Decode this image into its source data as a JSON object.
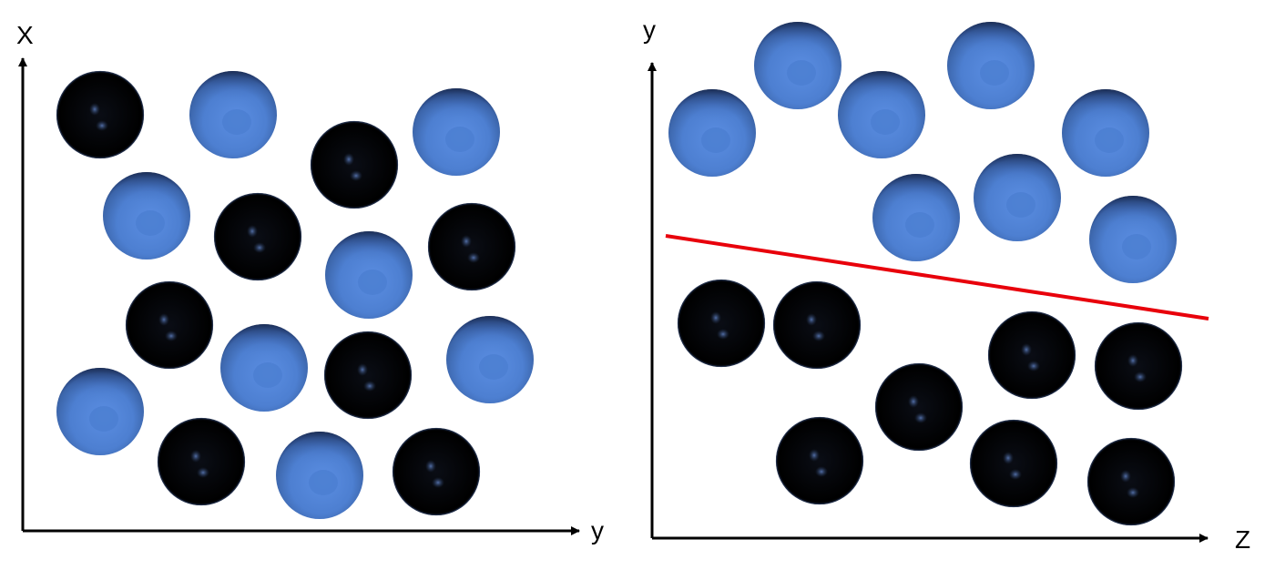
{
  "left_panel": {
    "vertical_axis_label": "X",
    "horizontal_axis_label": "y",
    "spheres": [
      {
        "type": "black"
      },
      {
        "type": "blue"
      },
      {
        "type": "black"
      },
      {
        "type": "blue"
      },
      {
        "type": "blue"
      },
      {
        "type": "black"
      },
      {
        "type": "black"
      },
      {
        "type": "blue"
      },
      {
        "type": "black"
      },
      {
        "type": "blue"
      },
      {
        "type": "black"
      },
      {
        "type": "blue"
      },
      {
        "type": "blue"
      },
      {
        "type": "black"
      },
      {
        "type": "blue"
      },
      {
        "type": "black"
      }
    ]
  },
  "right_panel": {
    "vertical_axis_label": "y",
    "horizontal_axis_label": "Z",
    "spheres": [
      {
        "type": "blue"
      },
      {
        "type": "blue"
      },
      {
        "type": "blue"
      },
      {
        "type": "blue"
      },
      {
        "type": "blue"
      },
      {
        "type": "blue"
      },
      {
        "type": "blue"
      },
      {
        "type": "blue"
      },
      {
        "type": "black"
      },
      {
        "type": "black"
      },
      {
        "type": "black"
      },
      {
        "type": "black"
      },
      {
        "type": "black"
      },
      {
        "type": "black"
      },
      {
        "type": "black"
      },
      {
        "type": "black"
      }
    ],
    "divider_line": {
      "color": "#e8000b"
    }
  },
  "colors": {
    "blue_sphere": "#4d7fd1",
    "black_sphere": "#000000",
    "axis": "#000000"
  }
}
